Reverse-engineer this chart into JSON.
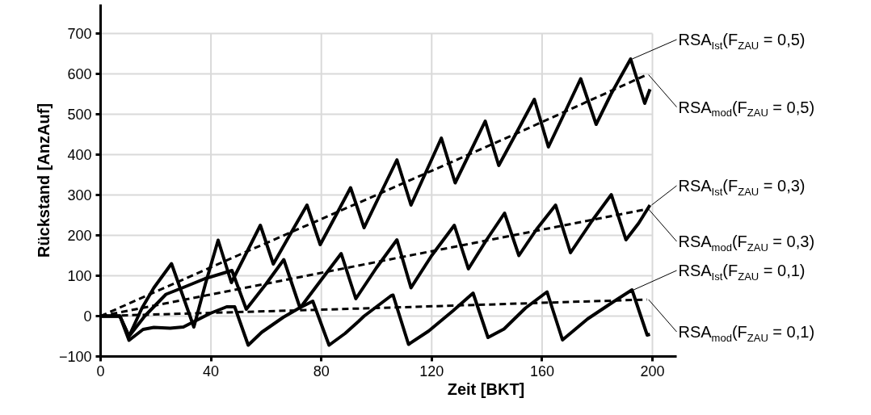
{
  "chart_data": {
    "type": "line",
    "xlabel": "Zeit [BKT]",
    "ylabel": "Rückstand [AnzAuf]",
    "xlim": [
      0,
      200
    ],
    "xticks": [
      0,
      40,
      80,
      120,
      160,
      200
    ],
    "ylim": [
      -100,
      700
    ],
    "yticks": [
      -100,
      0,
      100,
      200,
      300,
      400,
      500,
      600,
      700
    ],
    "grid": true,
    "legend": "right",
    "series": [
      {
        "name": "RSA$_{Ist}$(F$_{ZAU}$ = 0,5)",
        "color": "#000000",
        "line_style": "solid",
        "x": [
          0,
          7,
          10.3,
          15,
          19.3,
          25.7,
          33.8,
          38,
          42.6,
          47.4,
          52,
          57.9,
          62.6,
          68,
          74.8,
          79.6,
          85,
          90.6,
          95.5,
          101,
          107.4,
          112.5,
          118,
          123.5,
          128.5,
          134,
          139.4,
          144.3,
          150,
          157.2,
          162.3,
          168,
          174,
          179.6,
          185,
          192.1,
          197.2,
          199.1
        ],
        "values": [
          0,
          0,
          -50,
          20,
          70,
          130,
          -27,
          80,
          188,
          83,
          145,
          225,
          129,
          194,
          275,
          177,
          246,
          318,
          219,
          297,
          387,
          275,
          358,
          441,
          330,
          407,
          483,
          373,
          445,
          537,
          419,
          501,
          588,
          475,
          550,
          637,
          527,
          562
        ]
      },
      {
        "name": "RSA$_{mod}$(F$_{ZAU}$ = 0,5)",
        "color": "#000000",
        "line_style": "dashed",
        "x": [
          0,
          50,
          100,
          150,
          198
        ],
        "values": [
          0,
          151,
          300,
          450,
          598
        ]
      },
      {
        "name": "RSA$_{Ist}$(F$_{ZAU}$ = 0,3)",
        "color": "#000000",
        "line_style": "solid",
        "x": [
          0,
          7,
          10.3,
          16,
          23.7,
          30,
          37.9,
          47.6,
          52.8,
          60,
          66.4,
          72.3,
          80,
          87.2,
          92.5,
          100,
          107.4,
          112.5,
          120,
          128.2,
          133.3,
          140,
          146.4,
          151.6,
          158,
          164.9,
          170.3,
          178,
          185.1,
          190.4,
          195,
          199.1
        ],
        "values": [
          0,
          0,
          -50,
          0,
          54,
          71,
          93,
          113,
          17,
          80,
          140,
          20,
          90,
          155,
          43,
          120,
          189,
          70,
          150,
          225,
          117,
          190,
          255,
          150,
          215,
          275,
          157,
          235,
          301,
          189,
          230,
          275
        ]
      },
      {
        "name": "RSA$_{mod}$(F$_{ZAU}$ = 0,3)",
        "color": "#000000",
        "line_style": "dashed",
        "x": [
          0,
          100,
          198
        ],
        "values": [
          0,
          134,
          265
        ]
      },
      {
        "name": "RSA$_{Ist}$(F$_{ZAU}$ = 0,1)",
        "color": "#000000",
        "line_style": "solid",
        "x": [
          0,
          7,
          10.3,
          15.4,
          19.3,
          25.2,
          30,
          34.9,
          39.8,
          45.7,
          48.6,
          53.5,
          58.4,
          66.2,
          72,
          76.9,
          82.8,
          88.6,
          93.5,
          95.5,
          105.2,
          106,
          111.6,
          118.9,
          127.7,
          135,
          140.4,
          146.2,
          154,
          161.8,
          167.4,
          176.5,
          185.3,
          192.6,
          198.1,
          199.1
        ],
        "values": [
          0,
          0,
          -60,
          -33,
          -28,
          -30,
          -27,
          -10,
          7,
          23,
          23,
          -72,
          -40,
          -3,
          20,
          37,
          -72,
          -43,
          -13,
          0,
          50,
          52,
          -70,
          -37,
          13,
          57,
          -53,
          -32,
          20,
          60,
          -59,
          -7,
          33,
          65,
          -47,
          -45
        ]
      },
      {
        "name": "RSA$_{mod}$(F$_{ZAU}$ = 0,1)",
        "color": "#000000",
        "line_style": "dashed",
        "x": [
          0,
          100,
          198
        ],
        "values": [
          0,
          20,
          41
        ]
      }
    ]
  }
}
